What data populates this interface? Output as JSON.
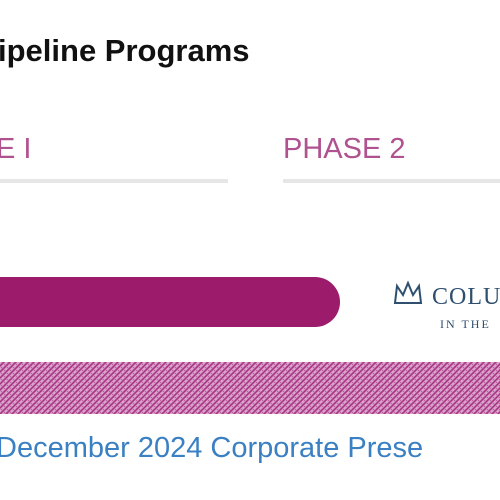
{
  "header": {
    "title": "ipeline Programs"
  },
  "phases": [
    {
      "label": "E I"
    },
    {
      "label": "PHASE 2"
    }
  ],
  "logo": {
    "name": "COLU",
    "subtitle": "IN THE"
  },
  "footer": {
    "text": "December 2024 Corporate Prese"
  }
}
